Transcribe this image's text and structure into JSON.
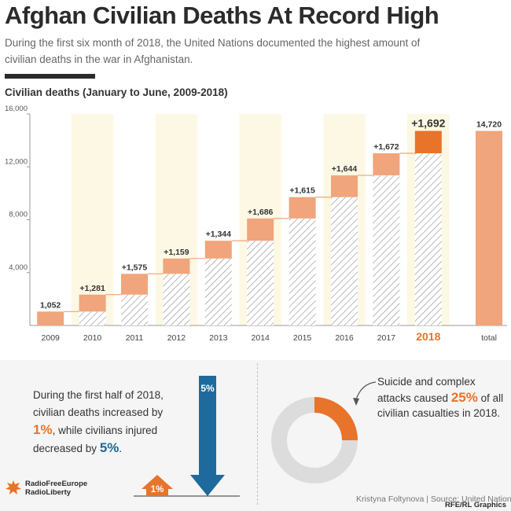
{
  "header": {
    "title": "Afghan Civilian Deaths At Record High",
    "subtitle": "During the first six month of 2018, the United Nations documented the highest amount of civilian deaths in the war in Afghanistan."
  },
  "colors": {
    "increment": "#f0a57c",
    "highlight": "#e8732a",
    "band": "#fdf8e4",
    "hatch": "#8c8c8c",
    "blue": "#1e6a9c",
    "text": "#333333"
  },
  "chart_data": {
    "type": "bar",
    "title": "Civilian deaths (January to June, 2009-2018)",
    "categories": [
      "2009",
      "2010",
      "2011",
      "2012",
      "2013",
      "2014",
      "2015",
      "2016",
      "2017",
      "2018"
    ],
    "series": [
      {
        "values": [
          1052,
          1281,
          1575,
          1159,
          1344,
          1686,
          1615,
          1644,
          1672,
          1692
        ]
      }
    ],
    "value_labels": [
      "1,052",
      "+1,281",
      "+1,575",
      "+1,159",
      "+1,344",
      "+1,686",
      "+1,615",
      "+1,644",
      "+1,672",
      "+1,692"
    ],
    "total_label": "total",
    "total_value": 14720,
    "total_value_label": "14,720",
    "highlight_category": "2018",
    "yticks": [
      4000,
      8000,
      12000,
      16000
    ],
    "ytick_labels": [
      "4,000",
      "8,000",
      "12,000",
      "16,000"
    ],
    "ylim": [
      0,
      16000
    ],
    "grid": false
  },
  "stats": {
    "text_a": "During the first half of 2018, civilian deaths increased by ",
    "deaths_change": "1%",
    "text_b": ", while civilians injured decreased by ",
    "injured_change": "5%",
    "text_c": ".",
    "up_arrow_label": "1%",
    "down_arrow_label": "5%"
  },
  "attacks": {
    "text_a": "Suicide and complex attacks caused ",
    "share_label": "25%",
    "share": 0.25,
    "text_b": " of all civilian casualties in 2018."
  },
  "footer": {
    "logo_line1": "RadioFreeEurope",
    "logo_line2": "RadioLiberty",
    "credit": "Kristyna Foltynova | Source: United Nations",
    "watermark": "RFE/RL Graphics"
  }
}
